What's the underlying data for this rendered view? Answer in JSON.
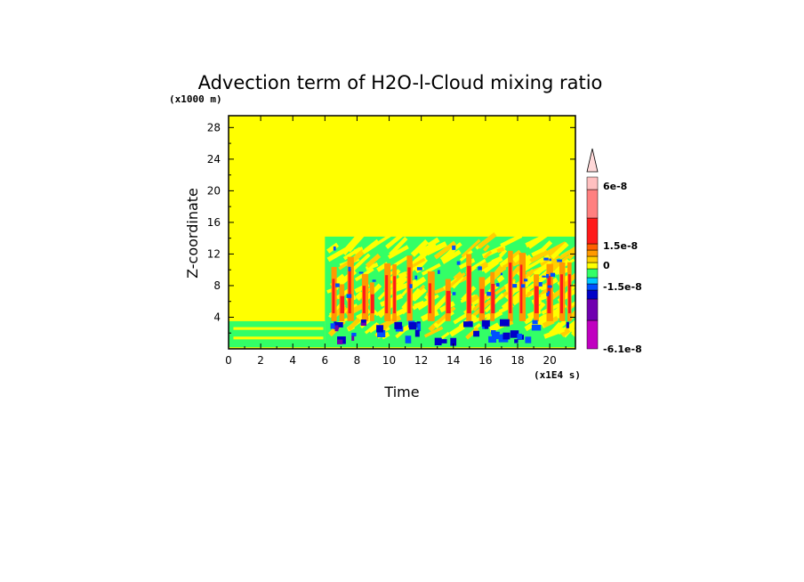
{
  "chart_data": {
    "type": "heatmap",
    "title": "Advection term of H2O-l-Cloud mixing ratio",
    "xlabel": "Time",
    "ylabel": "Z-coordinate",
    "x_unit": "(x1E4 s)",
    "y_unit": "(x1000 m)",
    "xlim": [
      0,
      21.6
    ],
    "ylim": [
      0,
      29.5
    ],
    "x_ticks": [
      "0",
      "2",
      "4",
      "6",
      "8",
      "10",
      "12",
      "14",
      "16",
      "18",
      "20"
    ],
    "y_ticks": [
      "4",
      "8",
      "12",
      "16",
      "20",
      "24",
      "28"
    ],
    "background_color": "#ffff00",
    "regions": [
      {
        "x": [
          0,
          6.0
        ],
        "z": [
          0.2,
          3.5
        ],
        "description_color": "#33ff66"
      },
      {
        "x": [
          6.0,
          21.6
        ],
        "z": [
          0.2,
          14.2
        ],
        "description_color": "#33ff66"
      }
    ],
    "colorbar": {
      "labels": [
        {
          "text": "6e-8",
          "value": 6e-08
        },
        {
          "text": "1.5e-8",
          "value": 1.5e-08
        },
        {
          "text": "0",
          "value": 0
        },
        {
          "text": "-1.5e-8",
          "value": -1.5e-08
        },
        {
          "text": "-6.1e-8",
          "value": -6.1e-08
        }
      ],
      "colors": [
        "#c000c0",
        "#7000b0",
        "#0000c8",
        "#0050ff",
        "#00c8ff",
        "#33ff66",
        "#ffff00",
        "#ffd000",
        "#ff9900",
        "#ff6000",
        "#ff1a1a",
        "#ff8080",
        "#ffc0c0"
      ]
    }
  }
}
